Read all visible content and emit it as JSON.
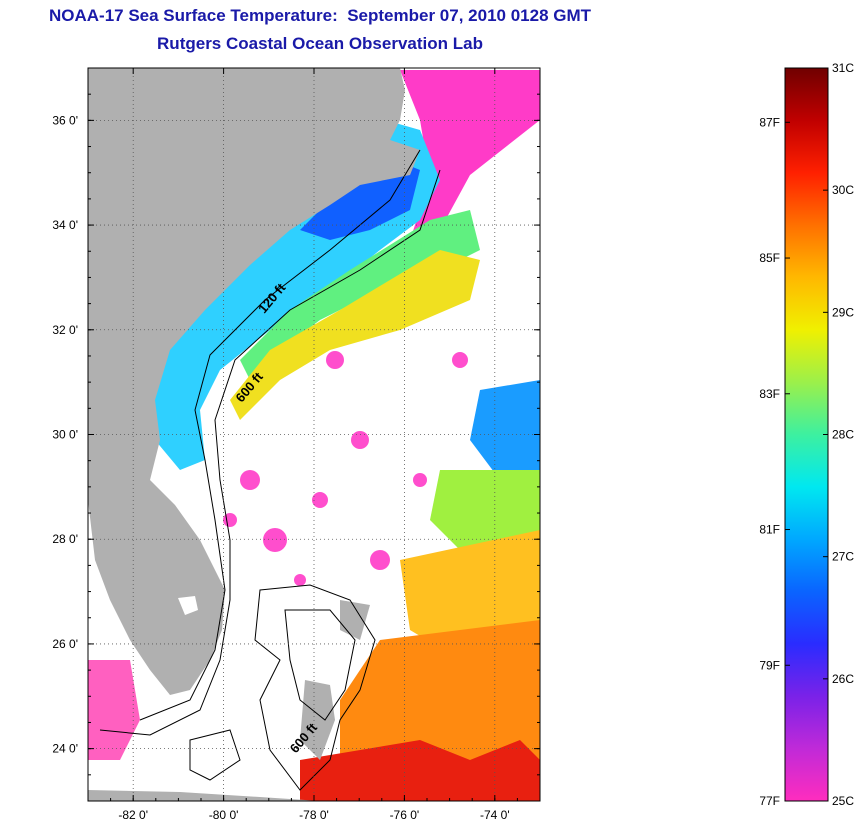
{
  "header": {
    "title": "NOAA-17 Sea Surface Temperature:  September 07, 2010 0128 GMT",
    "subtitle": "Rutgers Coastal Ocean Observation Lab"
  },
  "map": {
    "lon_range": [
      -83,
      -73
    ],
    "lat_range": [
      23,
      37
    ],
    "lon_ticks": [
      {
        "value": -82,
        "label": "-82 0'"
      },
      {
        "value": -80,
        "label": "-80 0'"
      },
      {
        "value": -78,
        "label": "-78 0'"
      },
      {
        "value": -76,
        "label": "-76 0'"
      },
      {
        "value": -74,
        "label": "-74 0'"
      }
    ],
    "lat_ticks": [
      {
        "value": 24,
        "label": "24 0'"
      },
      {
        "value": 26,
        "label": "26 0'"
      },
      {
        "value": 28,
        "label": "28 0'"
      },
      {
        "value": 30,
        "label": "30 0'"
      },
      {
        "value": 32,
        "label": "32 0'"
      },
      {
        "value": 34,
        "label": "34 0'"
      },
      {
        "value": 36,
        "label": "36 0'"
      }
    ],
    "grid": "dotted",
    "land_color": "#b0b0b0",
    "depth_labels": [
      {
        "text": "120 ft",
        "lon": -79.1,
        "lat": 32.3
      },
      {
        "text": "600 ft",
        "lon": -79.6,
        "lat": 30.6
      },
      {
        "text": "600 ft",
        "lon": -78.4,
        "lat": 23.9
      }
    ]
  },
  "colorbar": {
    "min_c": 25,
    "max_c": 31,
    "celsius_labels": [
      "31C",
      "30C",
      "29C",
      "28C",
      "27C",
      "26C",
      "25C"
    ],
    "fahrenheit_labels": [
      {
        "label": "87F",
        "value_f": 87
      },
      {
        "label": "85F",
        "value_f": 85
      },
      {
        "label": "83F",
        "value_f": 83
      },
      {
        "label": "81F",
        "value_f": 81
      },
      {
        "label": "79F",
        "value_f": 79
      },
      {
        "label": "77F",
        "value_f": 77
      }
    ],
    "colors": [
      "#ff2dbe",
      "#c02ad8",
      "#7a22e8",
      "#2a2cff",
      "#0a64ff",
      "#00a8ff",
      "#00e8f0",
      "#3df0a0",
      "#9cf04a",
      "#f0f000",
      "#ffb800",
      "#ff7000",
      "#ff2000",
      "#c00000",
      "#700000"
    ]
  }
}
